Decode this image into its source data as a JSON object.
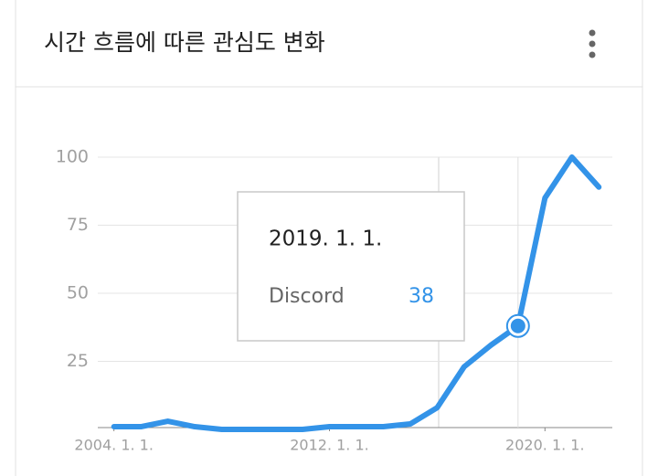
{
  "chart_data": {
    "type": "line",
    "title": "시간 흐름에 따른 관심도 변화",
    "x": [
      2004,
      2005,
      2006,
      2007,
      2008,
      2009,
      2010,
      2011,
      2012,
      2013,
      2014,
      2015,
      2016,
      2017,
      2018,
      2019,
      2020,
      2021,
      2022
    ],
    "series": [
      {
        "name": "Discord",
        "color": "#3393e8",
        "values": [
          1,
          1,
          3,
          1,
          0,
          0,
          0,
          0,
          1,
          1,
          1,
          2,
          8,
          23,
          31,
          38,
          85,
          100,
          89
        ]
      }
    ],
    "xlim": [
      2003.4,
      2022.5
    ],
    "xticks": [
      {
        "value": 2004,
        "label": "2004. 1. 1."
      },
      {
        "value": 2012,
        "label": "2012. 1. 1."
      },
      {
        "value": 2020,
        "label": "2020. 1. 1."
      }
    ],
    "ylim": [
      0,
      100
    ],
    "yticks": [
      25,
      50,
      75,
      100
    ],
    "grid": true,
    "tooltip": {
      "title": "2019. 1. 1.",
      "x": 2019
    }
  }
}
